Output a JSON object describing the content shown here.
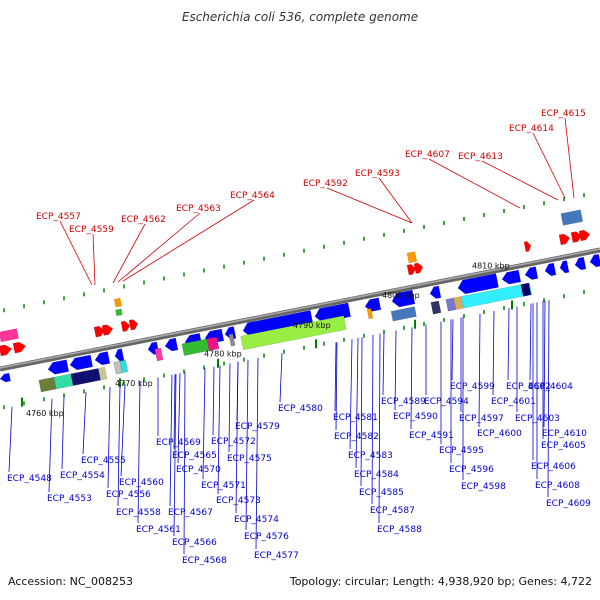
{
  "title": "Escherichia coli 536, complete genome",
  "footer": {
    "accession": "Accession: NC_008253",
    "summary": "Topology: circular; Length: 4,938,920 bp; Genes: 4,722"
  },
  "scale_labels": [
    "4760 kbp",
    "4770 kbp",
    "4780 kbp",
    "4790 kbp",
    "4800 kbp",
    "4810 kbp"
  ],
  "upper_gene_labels": [
    "ECP_4557",
    "ECP_4559",
    "ECP_4562",
    "ECP_4563",
    "ECP_4564",
    "ECP_4592",
    "ECP_4593",
    "ECP_4607",
    "ECP_4613",
    "ECP_4614",
    "ECP_4615"
  ],
  "lower_gene_labels": [
    "ECP_4548",
    "ECP_4553",
    "ECP_4554",
    "ECP_4555",
    "ECP_4556",
    "ECP_4558",
    "ECP_4560",
    "ECP_4561",
    "ECP_4565",
    "ECP_4566",
    "ECP_4567",
    "ECP_4568",
    "ECP_4569",
    "ECP_4570",
    "ECP_4571",
    "ECP_4572",
    "ECP_4573",
    "ECP_4574",
    "ECP_4575",
    "ECP_4576",
    "ECP_4577",
    "ECP_4579",
    "ECP_4580",
    "ECP_4581",
    "ECP_4582",
    "ECP_4583",
    "ECP_4584",
    "ECP_4585",
    "ECP_4587",
    "ECP_4588",
    "ECP_4589",
    "ECP_4590",
    "ECP_4591",
    "ECP_4594",
    "ECP_4595",
    "ECP_4596",
    "ECP_4597",
    "ECP_4598",
    "ECP_4599",
    "ECP_4600",
    "ECP_4601",
    "ECP_4602",
    "ECP_4603",
    "ECP_4604",
    "ECP_4605",
    "ECP_4606",
    "ECP_4608",
    "ECP_4609",
    "ECP_4610"
  ],
  "colors": {
    "upper_label": "#cc0000",
    "lower_label": "#0000cc",
    "backbone": "#888888",
    "forward_gene": "#ff0000",
    "reverse_gene": "#0000ff",
    "tick": "#008000"
  }
}
